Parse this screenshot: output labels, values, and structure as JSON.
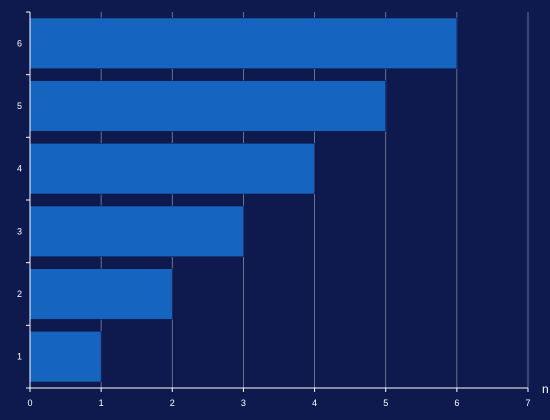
{
  "chart_data": {
    "type": "bar",
    "orientation": "horizontal",
    "categories": [
      "1",
      "2",
      "3",
      "4",
      "5",
      "6"
    ],
    "values": [
      1,
      2,
      3,
      4,
      5,
      6
    ],
    "xlim": [
      0,
      7
    ],
    "xticks": [
      "0",
      "1",
      "2",
      "3",
      "4",
      "5",
      "6",
      "7"
    ],
    "xlabel": "n",
    "ylabel": "",
    "title": "",
    "grid": "vertical",
    "legend": "none",
    "colors": {
      "background": "#0e1a4e",
      "bar": "#1565c0",
      "bar_edge": "#0e1a4e",
      "grid": "#7f86a8",
      "axis": "#ffffff",
      "text": "#ffffff"
    }
  }
}
